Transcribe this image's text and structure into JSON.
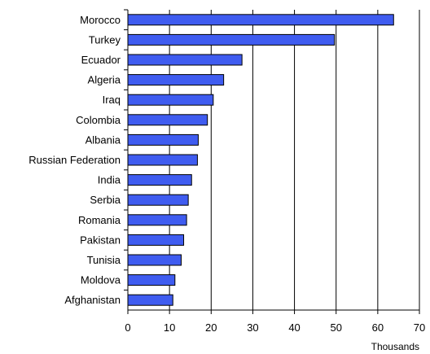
{
  "chart_data": {
    "type": "bar",
    "orientation": "horizontal",
    "categories": [
      "Morocco",
      "Turkey",
      "Ecuador",
      "Algeria",
      "Iraq",
      "Colombia",
      "Albania",
      "Russian Federation",
      "India",
      "Serbia",
      "Romania",
      "Pakistan",
      "Tunisia",
      "Moldova",
      "Afghanistan"
    ],
    "values": [
      63.8,
      49.6,
      27.4,
      23.0,
      20.5,
      19.1,
      16.9,
      16.7,
      15.3,
      14.5,
      14.1,
      13.4,
      12.8,
      11.3,
      10.8
    ],
    "xlabel": "Thousands",
    "xlim": [
      0,
      70
    ],
    "xticks": [
      0,
      10,
      20,
      30,
      40,
      50,
      60,
      70
    ],
    "grid": "vertical",
    "bar_color": "#3f5cf0"
  }
}
